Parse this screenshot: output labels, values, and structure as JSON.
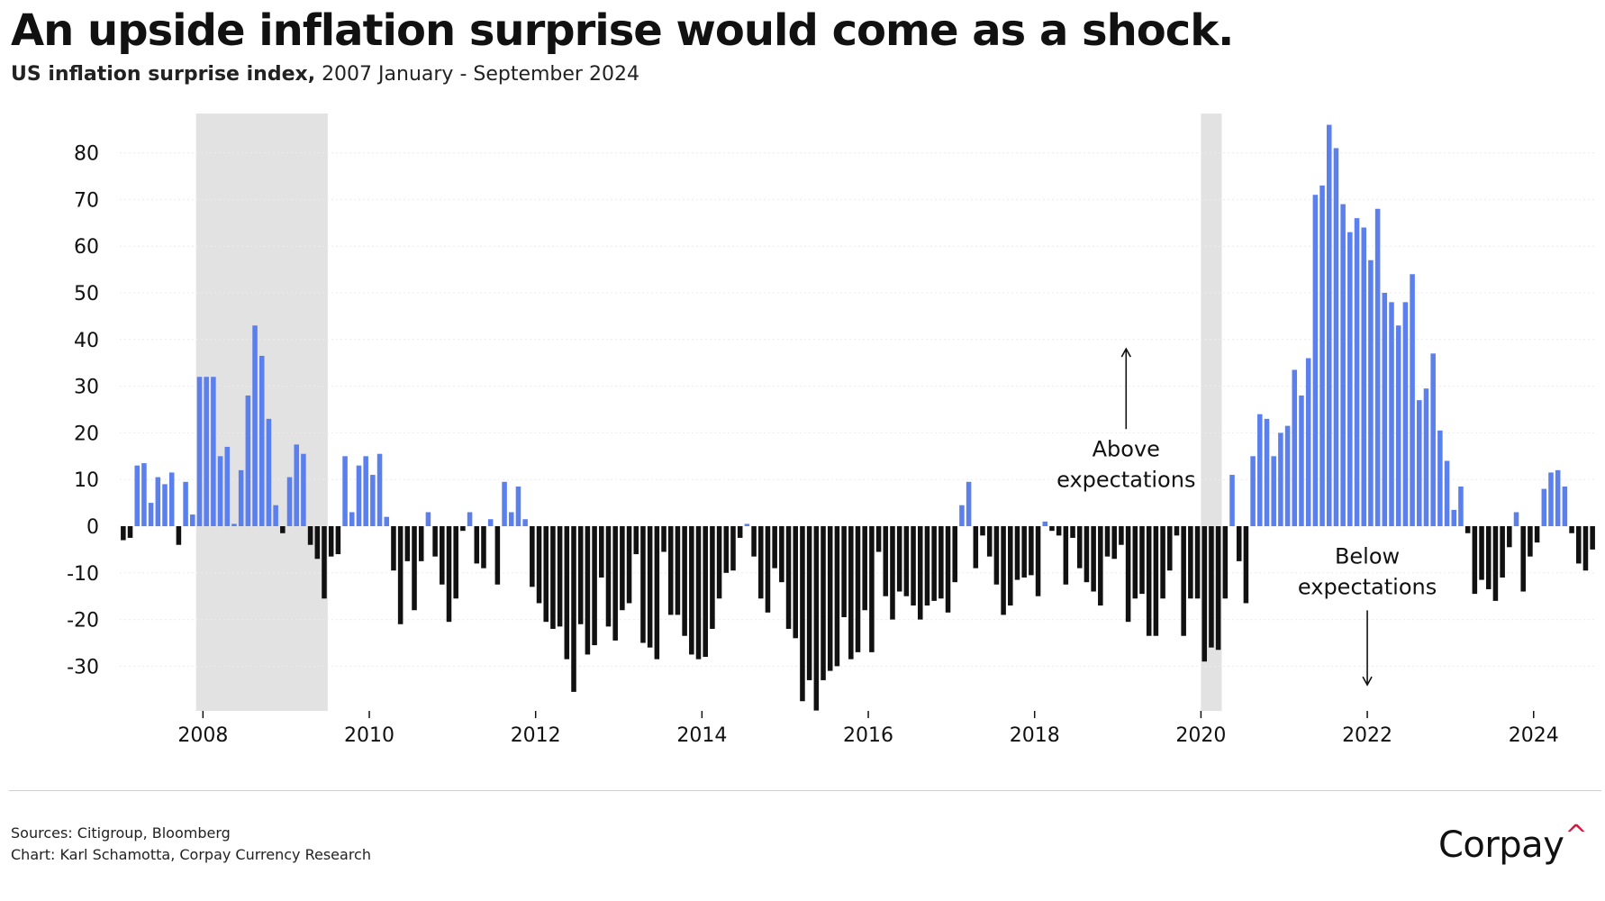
{
  "header": {
    "title": "An upside inflation surprise would come as a shock.",
    "subtitle_bold": "US inflation surprise index,",
    "subtitle_rest": "2007 January - September 2024"
  },
  "chart_data": {
    "type": "bar",
    "title": "US inflation surprise index",
    "xlabel": "",
    "ylabel": "",
    "ylim": [
      -40,
      90
    ],
    "xlim": [
      2007.0,
      2024.75
    ],
    "yticks": [
      80,
      70,
      60,
      50,
      40,
      30,
      20,
      10,
      0,
      -10,
      -20,
      -30
    ],
    "xticks": [
      2008,
      2010,
      2012,
      2014,
      2016,
      2018,
      2020,
      2022,
      2024
    ],
    "start": "2007-01",
    "frequency": "monthly",
    "positive_color": "#5b80ee",
    "negative_color": "#111111",
    "recession_color": "#e2e2e2",
    "recessions": [
      [
        2007.917,
        2009.5
      ],
      [
        2020.0,
        2020.25
      ]
    ],
    "annotations": [
      {
        "text": "Above\nexpectations",
        "x": 2019.1,
        "y": 15,
        "arrow_to_y": 38
      },
      {
        "text": "Below\nexpectations",
        "x": 2022.0,
        "y": -8,
        "arrow_to_y": -34
      }
    ],
    "values": [
      -3,
      -2.5,
      13,
      13.5,
      5,
      10.5,
      9,
      11.5,
      -4,
      9.5,
      2.5,
      32,
      32,
      32,
      15,
      17,
      0.5,
      12,
      28,
      43,
      36.5,
      23,
      4.5,
      -1.5,
      10.5,
      17.5,
      15.5,
      -4,
      -7,
      -15.5,
      -6.5,
      -6,
      15,
      3,
      13,
      15,
      11,
      15.5,
      2,
      -9.5,
      -21,
      -7.5,
      -18,
      -7.5,
      3,
      -6.5,
      -12.5,
      -20.5,
      -15.5,
      -1,
      3,
      -8,
      -9,
      1.5,
      -12.5,
      9.5,
      3,
      8.5,
      1.5,
      -13,
      -16.5,
      -20.5,
      -22,
      -21.5,
      -28.5,
      -35.5,
      -21,
      -27.5,
      -25.5,
      -11,
      -21.5,
      -24.5,
      -18,
      -16.5,
      -6,
      -25,
      -26,
      -28.5,
      -5.5,
      -19,
      -19,
      -23.5,
      -27.5,
      -28.5,
      -28,
      -22,
      -15.5,
      -10,
      -9.5,
      -2.5,
      0.5,
      -6.5,
      -15.5,
      -18.5,
      -9,
      -12,
      -22,
      -24,
      -37.5,
      -33,
      -39.5,
      -33,
      -31,
      -30,
      -19.5,
      -28.5,
      -27,
      -18,
      -27,
      -5.5,
      -15,
      -20,
      -14,
      -15,
      -17,
      -20,
      -17,
      -16,
      -15.5,
      -18.5,
      -12,
      4.5,
      9.5,
      -9,
      -2,
      -6.5,
      -12.5,
      -19,
      -17,
      -11.5,
      -11,
      -10.5,
      -15,
      1,
      -1,
      -2,
      -12.5,
      -2.5,
      -9,
      -12,
      -14,
      -17,
      -6.5,
      -7,
      -4,
      -20.5,
      -15.5,
      -14.5,
      -23.5,
      -23.5,
      -15.5,
      -9.5,
      -2,
      -23.5,
      -15.5,
      -15.5,
      -29,
      -26,
      -26.5,
      -15.5,
      11,
      -7.5,
      -16.5,
      15,
      24,
      23,
      15,
      20,
      21.5,
      33.5,
      28,
      36,
      71,
      73,
      86,
      81,
      69,
      63,
      66,
      64,
      57,
      68,
      50,
      48,
      43,
      48,
      54,
      27,
      29.5,
      37,
      20.5,
      14,
      3.5,
      8.5,
      -1.5,
      -14.5,
      -11.5,
      -13.5,
      -16,
      -11,
      -4.5,
      3,
      -14,
      -6.5,
      -3.5,
      8,
      11.5,
      12,
      8.5,
      -1.5,
      -8,
      -9.5,
      -5
    ]
  },
  "footer": {
    "sources": "Sources: Citigroup, Bloomberg",
    "credit": "Chart: Karl Schamotta, Corpay Currency Research",
    "logo_text": "Corpay",
    "logo_mark": "^"
  }
}
